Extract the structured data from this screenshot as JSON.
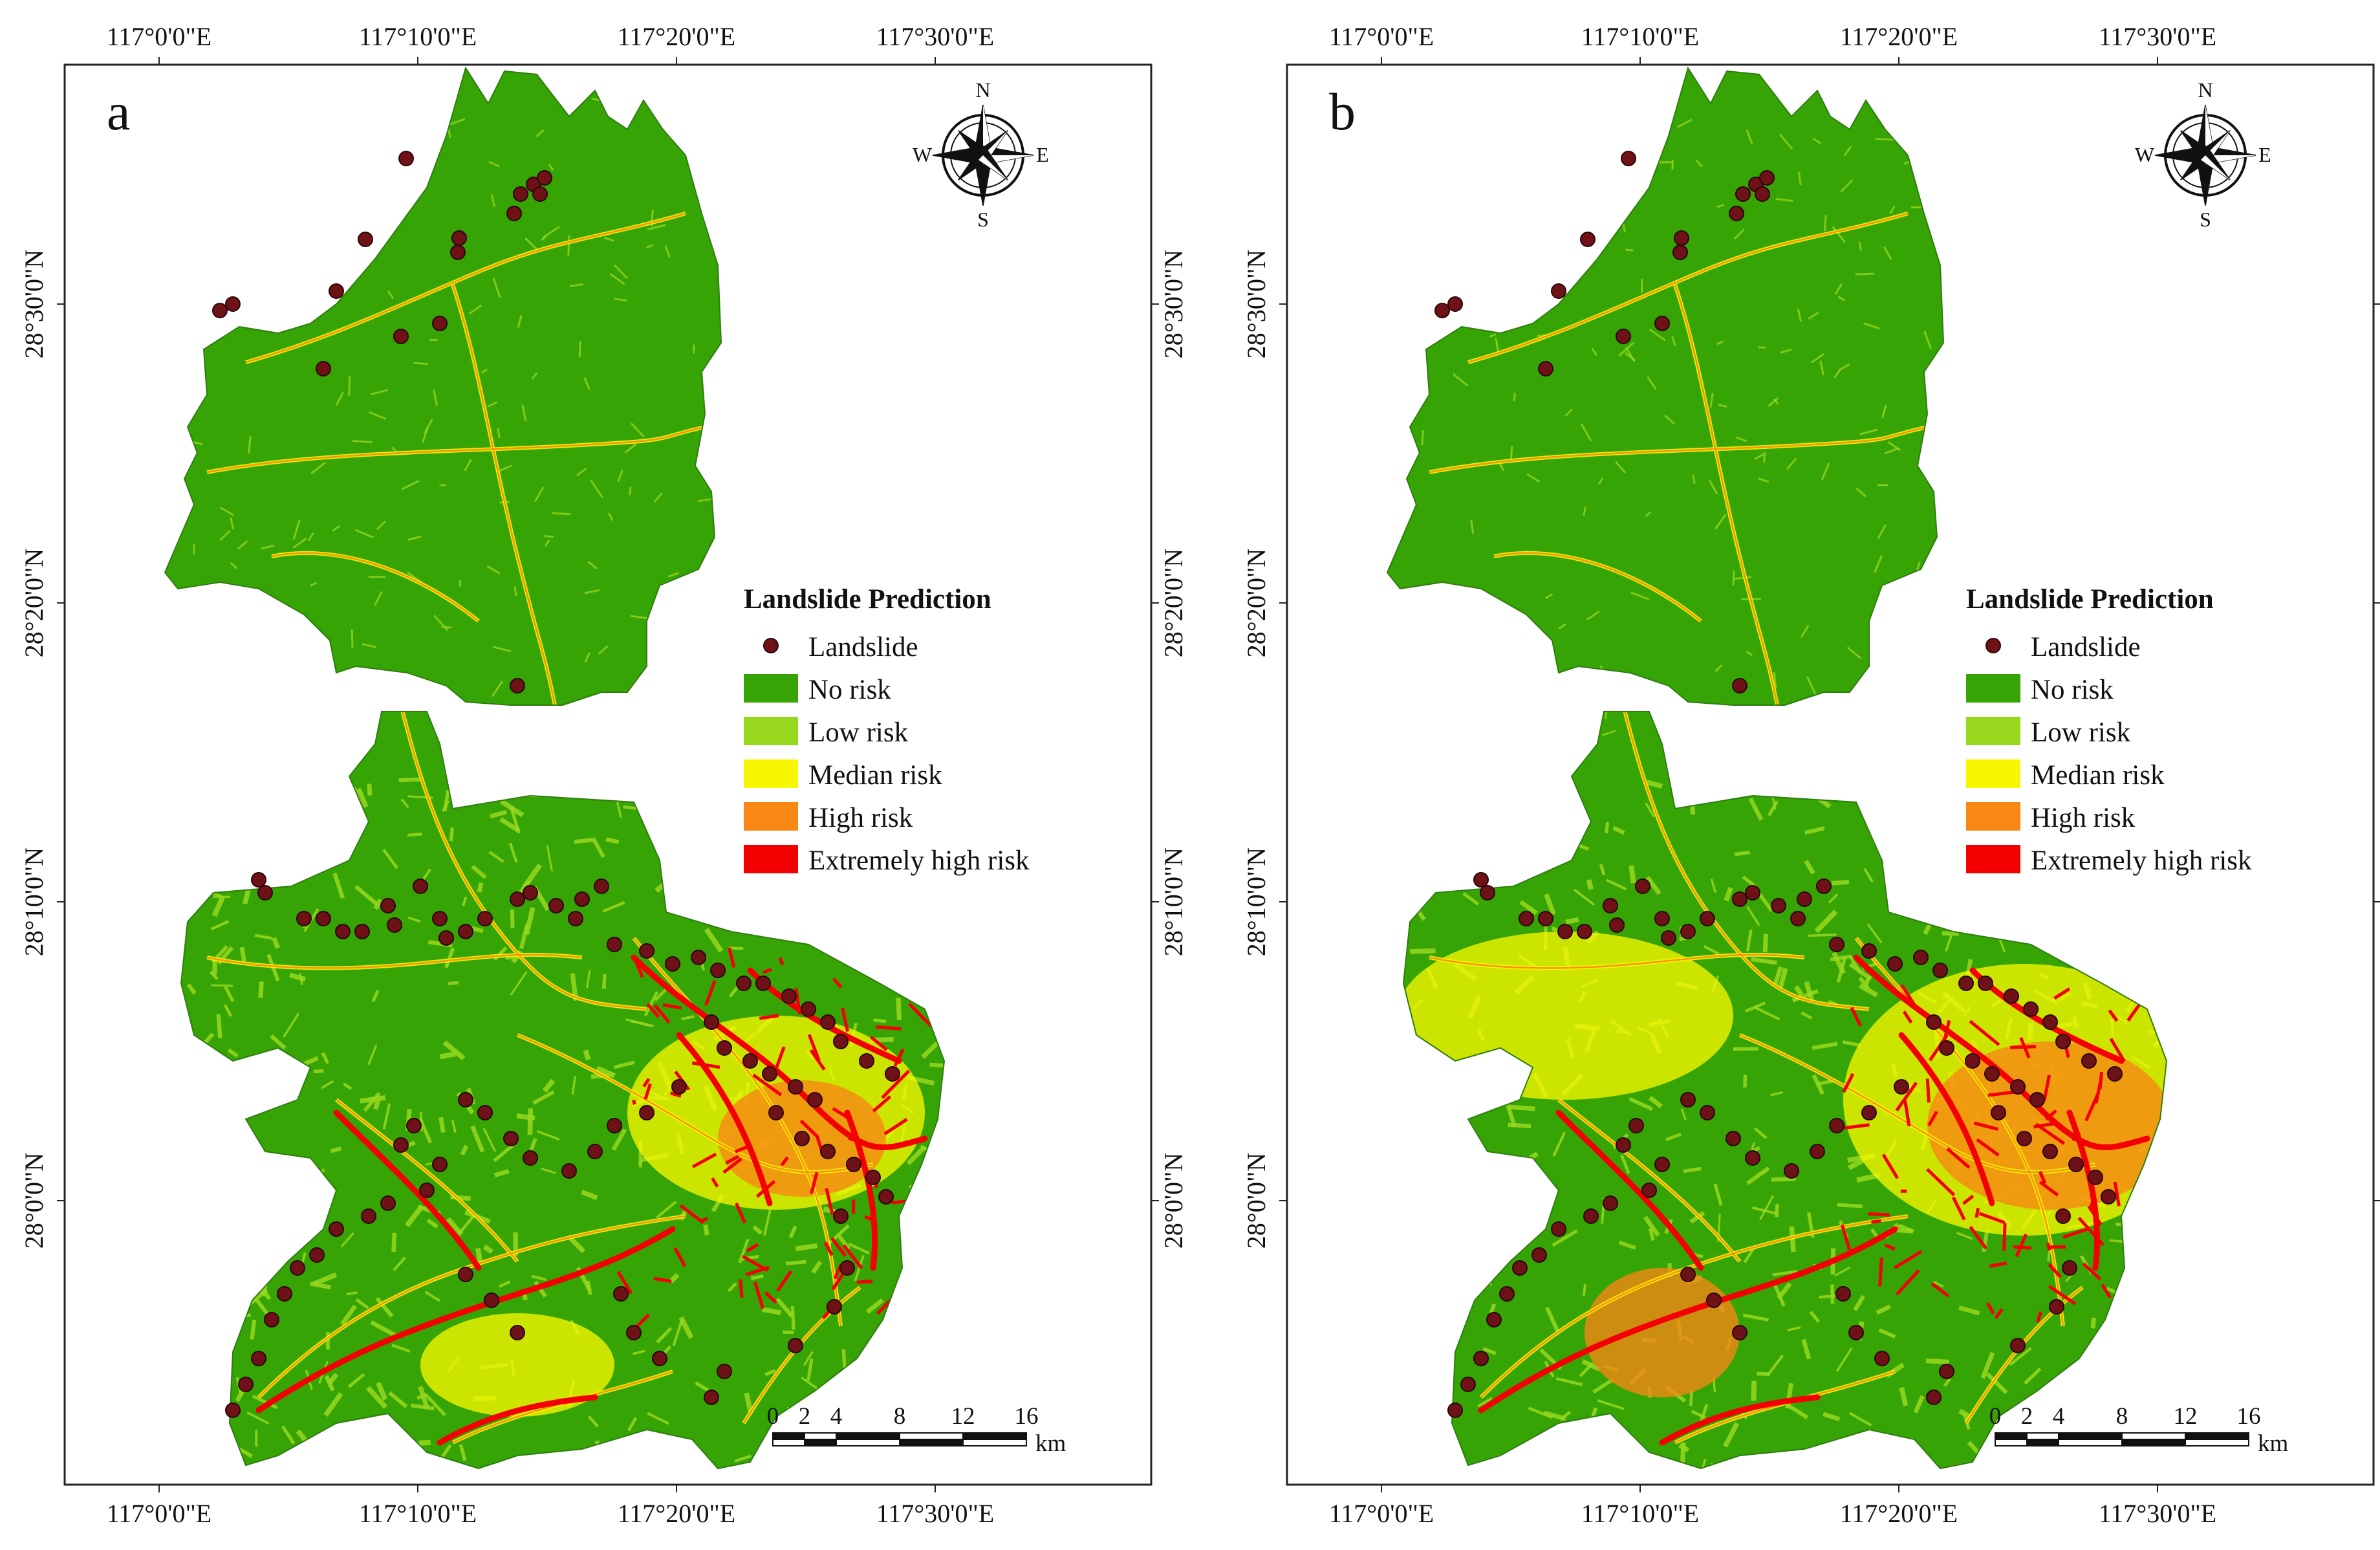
{
  "figure": {
    "panels": [
      {
        "letter": "a",
        "zones": [
          {
            "cx": 1100,
            "cy": 1720,
            "rx": 230,
            "ry": 150,
            "color": "#F7F700"
          },
          {
            "cx": 1140,
            "cy": 1760,
            "rx": 130,
            "ry": 90,
            "color": "#F88714"
          },
          {
            "cx": 700,
            "cy": 2110,
            "rx": 150,
            "ry": 80,
            "color": "#F7F700"
          }
        ]
      },
      {
        "letter": "b",
        "zones": [
          {
            "cx": 1140,
            "cy": 1700,
            "rx": 280,
            "ry": 210,
            "color": "#F7F700"
          },
          {
            "cx": 1180,
            "cy": 1740,
            "rx": 190,
            "ry": 130,
            "color": "#F88714"
          },
          {
            "cx": 580,
            "cy": 2060,
            "rx": 120,
            "ry": 100,
            "color": "#F88714"
          },
          {
            "cx": 430,
            "cy": 1570,
            "rx": 260,
            "ry": 130,
            "color": "#F7F700"
          }
        ]
      }
    ],
    "x_ticks": [
      "117°0'0\"E",
      "117°10'0\"E",
      "117°20'0\"E",
      "117°30'0\"E"
    ],
    "y_ticks": [
      "28°30'0\"N",
      "28°20'0\"N",
      "28°10'0\"N",
      "28°0'0\"N"
    ],
    "legend": {
      "title": "Landslide Prediction",
      "items": [
        {
          "label": "Landslide",
          "symbol": "point",
          "color": "#6E1218"
        },
        {
          "label": "No risk",
          "symbol": "patch",
          "color": "#35A404"
        },
        {
          "label": "Low risk",
          "symbol": "patch",
          "color": "#98D81F"
        },
        {
          "label": "Median risk",
          "symbol": "patch",
          "color": "#F7F700"
        },
        {
          "label": "High risk",
          "symbol": "patch",
          "color": "#F88714"
        },
        {
          "label": "Extremely high risk",
          "symbol": "patch",
          "color": "#F30000"
        }
      ]
    },
    "scalebar": {
      "labels": [
        "0",
        "2",
        "4",
        "8",
        "12",
        "16"
      ],
      "unit": "km",
      "values_km": [
        0,
        2,
        4,
        8,
        12,
        16
      ]
    },
    "compass": {
      "north": "N",
      "south": "S",
      "east": "E",
      "west": "W"
    },
    "colors": {
      "no_risk": "#35A404",
      "low_risk": "#98D81F",
      "median_risk": "#F7F700",
      "high_risk": "#F88714",
      "extreme_risk": "#F30000",
      "landslide_point": "#6E1218"
    }
  }
}
